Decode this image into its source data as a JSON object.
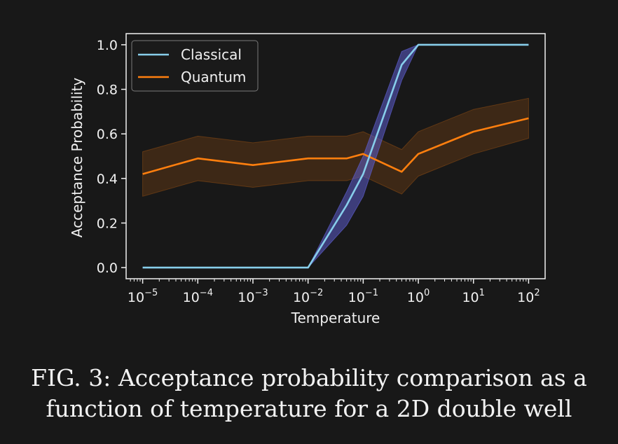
{
  "chart_data": {
    "type": "line",
    "xscale": "log",
    "x": [
      1e-05,
      0.0001,
      0.001,
      0.01,
      0.05,
      0.1,
      0.5,
      1,
      10,
      100
    ],
    "xlim_exp": [
      -5.3,
      2.3
    ],
    "ylim": [
      -0.05,
      1.05
    ],
    "xlabel": "Temperature",
    "ylabel": "Acceptance Probability",
    "yticks": [
      "0.0",
      "0.2",
      "0.4",
      "0.6",
      "0.8",
      "1.0"
    ],
    "xticks": [
      {
        "base": "10",
        "exp": "−5"
      },
      {
        "base": "10",
        "exp": "−4"
      },
      {
        "base": "10",
        "exp": "−3"
      },
      {
        "base": "10",
        "exp": "−2"
      },
      {
        "base": "10",
        "exp": "−1"
      },
      {
        "base": "10",
        "exp": "0"
      },
      {
        "base": "10",
        "exp": "1"
      },
      {
        "base": "10",
        "exp": "2"
      }
    ],
    "series": [
      {
        "name": "Classical",
        "color": "#87ceeb",
        "band_color": "#5c5ccc",
        "values": [
          0.0,
          0.0,
          0.0,
          0.0,
          0.28,
          0.42,
          0.91,
          1.0,
          1.0,
          1.0
        ],
        "lower": [
          0.0,
          0.0,
          0.0,
          0.0,
          0.19,
          0.32,
          0.84,
          1.0,
          1.0,
          1.0
        ],
        "upper": [
          0.0,
          0.0,
          0.0,
          0.0,
          0.34,
          0.5,
          0.97,
          1.0,
          1.0,
          1.0
        ]
      },
      {
        "name": "Quantum",
        "color": "#ff7f0e",
        "band_color": "#ff7f0e",
        "values": [
          0.42,
          0.49,
          0.46,
          0.49,
          0.49,
          0.51,
          0.43,
          0.51,
          0.61,
          0.67
        ],
        "lower": [
          0.32,
          0.39,
          0.36,
          0.39,
          0.39,
          0.41,
          0.33,
          0.41,
          0.51,
          0.58
        ],
        "upper": [
          0.52,
          0.59,
          0.56,
          0.59,
          0.59,
          0.61,
          0.53,
          0.61,
          0.71,
          0.76
        ]
      }
    ],
    "legend": "top-left"
  },
  "caption": {
    "line1": "FIG. 3: Acceptance probability comparison as a",
    "line2": "function of temperature for a 2D double well"
  }
}
